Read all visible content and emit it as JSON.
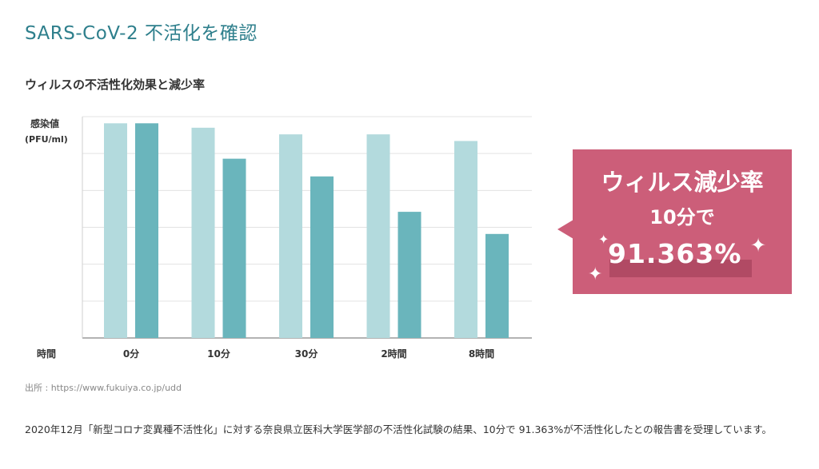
{
  "page": {
    "title": "SARS-CoV-2 不活化を確認"
  },
  "chart_data": {
    "type": "bar",
    "title": "ウィルスの不活性化効果と減少率",
    "ylabel": "感染値",
    "yunit": "(PFU/ml)",
    "xlabel": "時間",
    "categories": [
      "0分",
      "10分",
      "30分",
      "2時間",
      "8時間"
    ],
    "series": [
      {
        "values": [
          97,
          95,
          92,
          92,
          89
        ],
        "color": "#b3dadd"
      },
      {
        "values": [
          97,
          81,
          73,
          57,
          47
        ],
        "color": "#6ab5bc"
      }
    ],
    "ylim": [
      0,
      100
    ],
    "grid": true
  },
  "callout": {
    "line1": "ウィルス減少率",
    "line2": "10分で",
    "line3": "91.363%",
    "color": "#cc5e79"
  },
  "source": "出所 : https://www.fukuiya.co.jp/udd",
  "description": "2020年12月「新型コロナ変異種不活性化」に対する奈良県立医科大学医学部の不活性化試験の結果、10分で 91.363%が不活性化したとの報告書を受理しています。"
}
